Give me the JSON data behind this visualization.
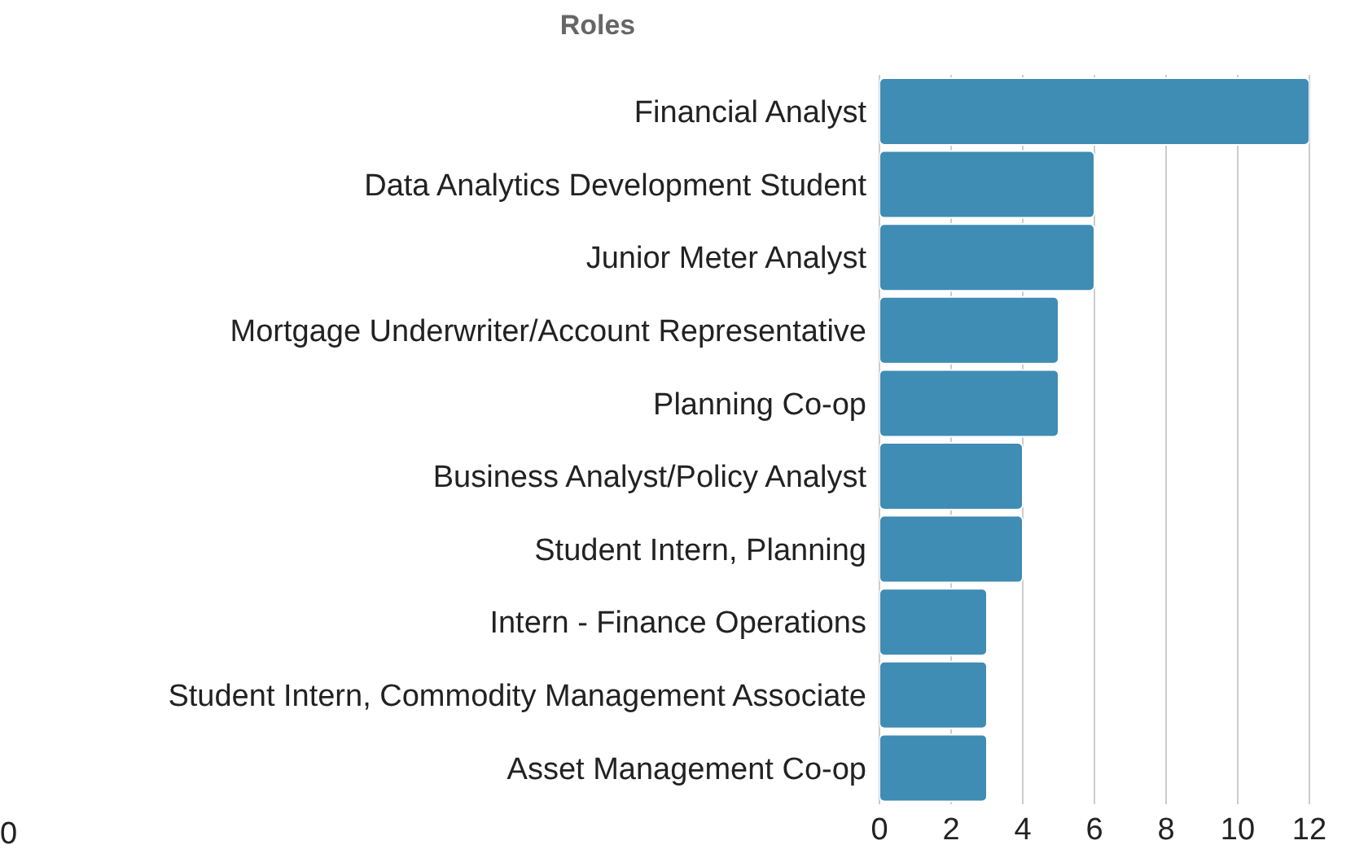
{
  "chart_data": {
    "type": "bar",
    "orientation": "horizontal",
    "title": "Roles",
    "categories": [
      "Financial Analyst",
      "Data Analytics Development Student",
      "Junior Meter Analyst",
      "Mortgage Underwriter/Account Representative",
      "Planning Co-op",
      "Business Analyst/Policy Analyst",
      "Student Intern, Planning",
      "Intern - Finance Operations",
      "Student Intern, Commodity Management Associate",
      "Asset Management Co-op"
    ],
    "values": [
      12,
      6,
      6,
      5,
      5,
      4,
      4,
      3,
      3,
      3
    ],
    "color": "#3f8cb4",
    "xlim": [
      0,
      12
    ],
    "xticks": [
      0,
      2,
      4,
      6,
      8,
      10,
      12
    ],
    "grid": "x",
    "legend": false,
    "annotations": [
      "0"
    ]
  }
}
